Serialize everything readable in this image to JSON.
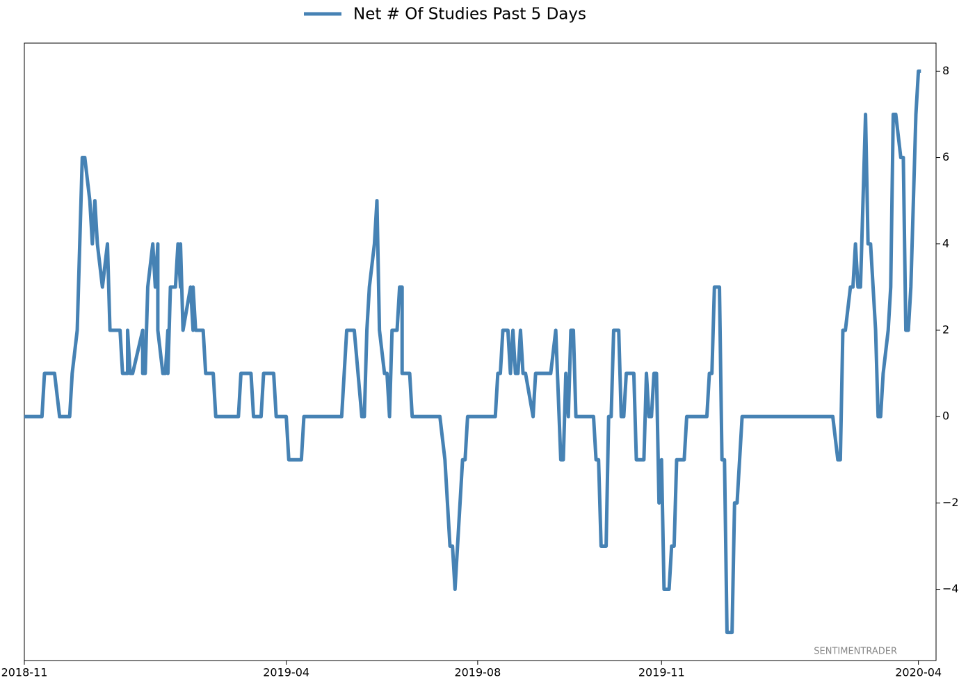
{
  "chart_data": {
    "type": "line",
    "legend_position": "top",
    "watermark": "SENTIMENTRADER",
    "x": [
      0,
      7,
      8,
      12,
      14,
      18,
      19,
      21,
      22,
      23,
      24,
      26,
      27,
      28,
      29,
      31,
      33,
      34,
      38,
      39,
      41,
      41,
      42,
      43,
      47,
      47,
      48,
      49,
      51,
      52,
      52,
      53,
      53,
      55,
      56,
      57,
      57,
      58,
      60,
      61,
      62,
      62,
      63,
      66,
      67,
      67,
      68,
      71,
      72,
      75,
      76,
      85,
      86,
      90,
      91,
      94,
      95,
      99,
      100,
      104,
      105,
      110,
      111,
      126,
      128,
      131,
      134,
      135,
      136,
      137,
      139,
      140,
      141,
      143,
      144,
      145,
      146,
      148,
      149,
      150,
      150,
      153,
      154,
      165,
      167,
      169,
      170,
      171,
      172,
      174,
      175,
      176,
      187,
      188,
      189,
      190,
      192,
      193,
      194,
      195,
      196,
      197,
      198,
      199,
      202,
      203,
      209,
      211,
      213,
      214,
      215,
      216,
      217,
      218,
      219,
      226,
      227,
      228,
      229,
      231,
      232,
      233,
      234,
      236,
      237,
      238,
      239,
      242,
      243,
      246,
      247,
      248,
      249,
      250,
      251,
      252,
      253,
      254,
      256,
      257,
      258,
      259,
      262,
      263,
      271,
      272,
      273,
      274,
      276,
      277,
      278,
      279,
      281,
      282,
      283,
      285,
      321,
      323,
      324,
      325,
      326,
      328,
      329,
      330,
      331,
      332,
      333,
      334,
      335,
      336,
      338,
      339,
      340,
      341,
      343,
      344,
      345,
      346,
      348,
      349,
      350,
      351,
      352,
      353,
      354,
      355,
      356
    ],
    "series": [
      {
        "name": "Net # Of Studies Past 5 Days",
        "color": "#4682b4",
        "values": [
          0,
          0,
          1,
          1,
          0,
          0,
          1,
          2,
          4,
          6,
          6,
          5,
          4,
          5,
          4,
          3,
          4,
          2,
          2,
          1,
          1,
          2,
          1,
          1,
          2,
          1,
          1,
          3,
          4,
          3,
          3,
          4,
          2,
          1,
          1,
          2,
          1,
          3,
          3,
          4,
          3,
          4,
          2,
          3,
          2,
          3,
          2,
          2,
          1,
          1,
          0,
          0,
          1,
          1,
          0,
          0,
          1,
          1,
          0,
          0,
          -1,
          -1,
          0,
          0,
          2,
          2,
          0,
          0,
          2,
          3,
          4,
          5,
          2,
          1,
          1,
          0,
          2,
          2,
          3,
          3,
          1,
          1,
          0,
          0,
          -1,
          -3,
          -3,
          -4,
          -3,
          -1,
          -1,
          0,
          0,
          1,
          1,
          2,
          2,
          1,
          2,
          1,
          1,
          2,
          1,
          1,
          0,
          1,
          1,
          2,
          -1,
          -1,
          1,
          0,
          2,
          2,
          0,
          0,
          -1,
          -1,
          -3,
          -3,
          0,
          0,
          2,
          2,
          0,
          0,
          1,
          1,
          -1,
          -1,
          1,
          0,
          0,
          1,
          1,
          -2,
          -1,
          -4,
          -4,
          -3,
          -3,
          -1,
          -1,
          0,
          0,
          1,
          1,
          3,
          3,
          -1,
          -1,
          -5,
          -5,
          -2,
          -2,
          0,
          0,
          -1,
          -1,
          2,
          2,
          3,
          3,
          4,
          3,
          3,
          5,
          7,
          4,
          4,
          2,
          0,
          0,
          1,
          2,
          3,
          7,
          7,
          6,
          6,
          2,
          2,
          3,
          5,
          7,
          8,
          8
        ]
      }
    ],
    "xlim": [
      0,
      362
    ],
    "xticks": [
      {
        "value": 0,
        "label": "2018-11"
      },
      {
        "value": 104,
        "label": "2019-04"
      },
      {
        "value": 180,
        "label": "2019-08"
      },
      {
        "value": 253,
        "label": "2019-11"
      },
      {
        "value": 355,
        "label": "2020-04"
      }
    ],
    "ylim": [
      -5.65,
      8.65
    ],
    "yticks": [
      {
        "value": -4,
        "label": "−4"
      },
      {
        "value": -2,
        "label": "−2"
      },
      0,
      2,
      4,
      6,
      8
    ],
    "grid": false
  }
}
